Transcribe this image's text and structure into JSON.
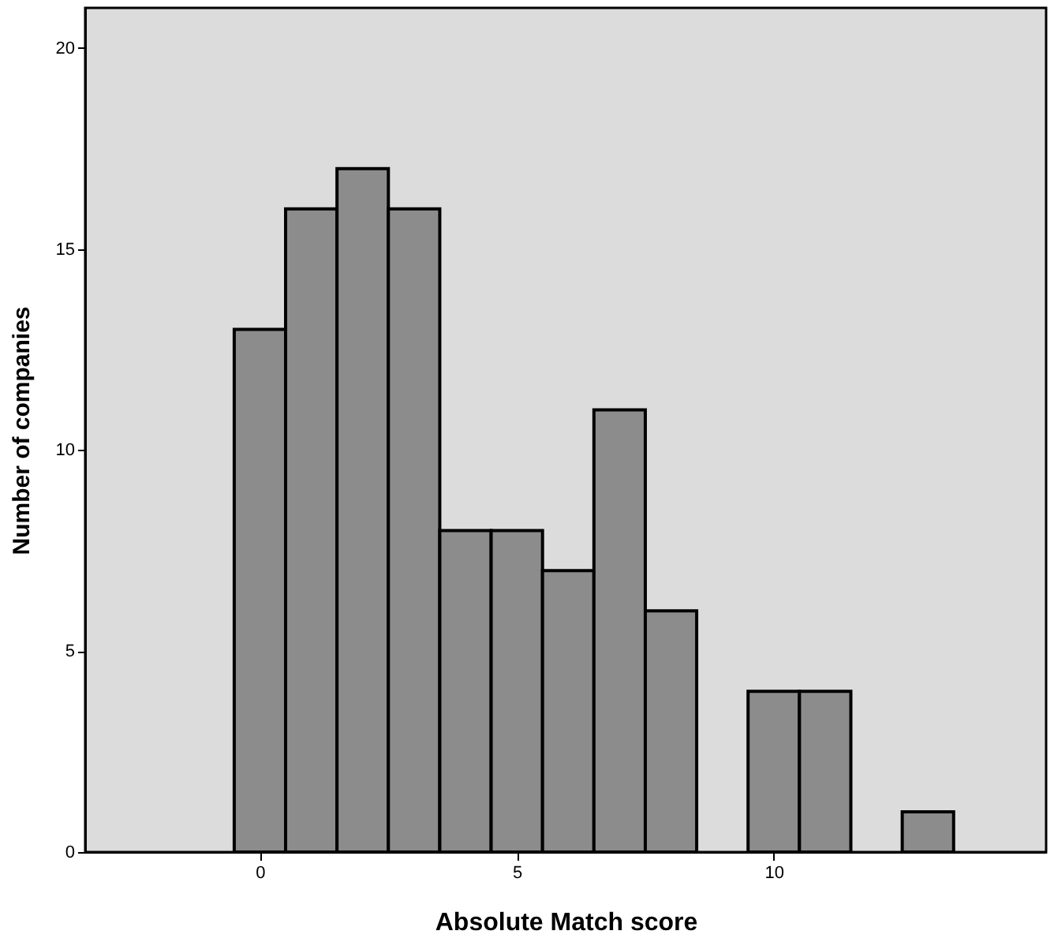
{
  "chart_data": {
    "type": "histogram",
    "xlabel": "Absolute Match score",
    "ylabel": "Number of companies",
    "bins": [
      -0.5,
      0.5,
      1.5,
      2.5,
      3.5,
      4.5,
      5.5,
      6.5,
      7.5,
      8.5,
      9.5,
      10.5,
      11.5,
      12.5,
      13.5
    ],
    "values": [
      13,
      16,
      17,
      16,
      8,
      8,
      7,
      11,
      6,
      0,
      4,
      4,
      0,
      1
    ],
    "color": "#8c8c8c",
    "xlim": [
      -3.4,
      15.3
    ],
    "xticks": [
      0,
      5,
      10
    ],
    "ylim": [
      0,
      21
    ],
    "yticks": [
      0,
      5,
      10,
      15,
      20
    ],
    "grid": false
  }
}
